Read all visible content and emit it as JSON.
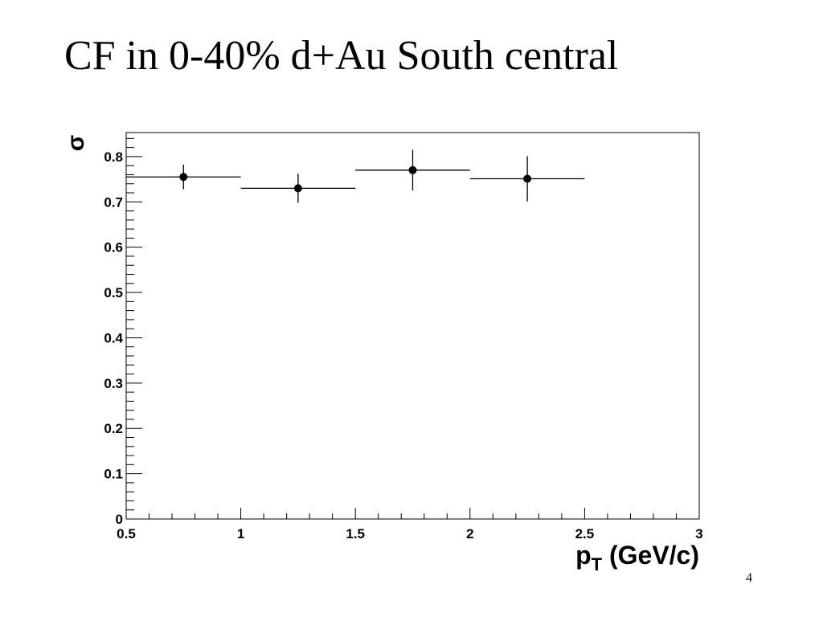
{
  "slide_title": "CF in 0-40% d+Au South central",
  "slide_number": "4",
  "chart_data": {
    "type": "errorbar",
    "y_label": "σ",
    "x_label": {
      "main": "p",
      "sub": "T",
      "rest": " (GeV/c)"
    },
    "x": [
      0.75,
      1.25,
      1.75,
      2.25
    ],
    "values": [
      0.755,
      0.73,
      0.77,
      0.751
    ],
    "yerr": [
      0.027,
      0.032,
      0.045,
      0.05
    ],
    "xerr": [
      0.25,
      0.25,
      0.25,
      0.25
    ],
    "color": "#000000",
    "xlim": [
      0.5,
      3
    ],
    "ylim": [
      0,
      0.853
    ],
    "xticks": [
      0.5,
      1,
      1.5,
      2,
      2.5,
      3
    ],
    "yticks": [
      0,
      0.1,
      0.2,
      0.3,
      0.4,
      0.5,
      0.6,
      0.7,
      0.8
    ]
  }
}
